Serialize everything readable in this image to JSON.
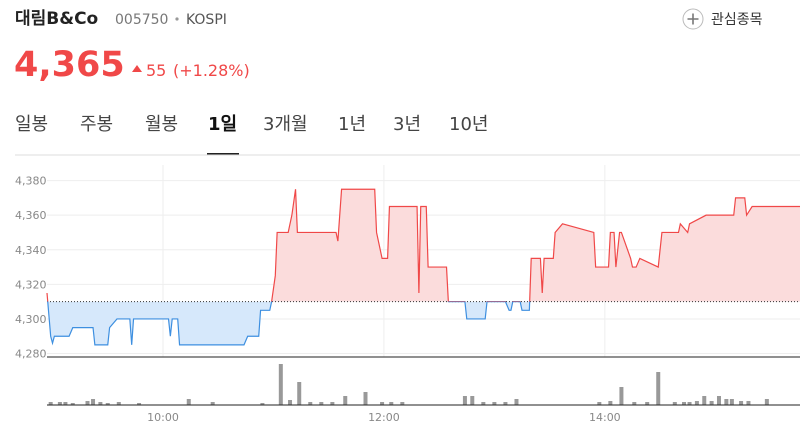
{
  "header": {
    "name": "대림B&Co",
    "code": "005750",
    "market": "KOSPI",
    "watch": "관심종목",
    "price": "4,365",
    "change": "55",
    "change_pct": "(+1.28%)"
  },
  "tabs": {
    "items": [
      "일봉",
      "주봉",
      "월봉",
      "1일",
      "3개월",
      "1년",
      "3년",
      "10년"
    ],
    "selected": 3
  },
  "chart_data": [
    {
      "type": "line",
      "x": [
        537,
        539,
        540,
        541,
        549,
        551,
        562,
        563,
        570,
        571,
        575,
        582,
        583,
        584,
        603,
        604,
        605,
        608,
        609,
        644,
        646,
        652,
        653,
        658,
        659,
        661,
        662,
        668,
        670,
        672,
        673,
        694,
        695,
        697,
        715,
        716,
        718,
        719,
        722,
        723,
        738,
        739,
        740,
        743,
        744,
        754,
        755,
        764,
        765,
        775,
        776,
        786,
        788,
        789,
        790,
        794,
        795,
        799,
        800,
        805,
        806,
        807,
        812,
        813,
        817,
        834,
        835,
        842,
        843,
        845,
        846,
        848,
        849,
        854,
        855,
        857,
        859,
        869,
        871,
        880,
        881,
        885,
        886,
        895,
        910,
        911,
        916,
        917,
        920,
        946
      ],
      "values": [
        4315,
        4290,
        4286,
        4290,
        4290,
        4295,
        4295,
        4285,
        4285,
        4295,
        4300,
        4300,
        4285,
        4300,
        4300,
        4290,
        4300,
        4300,
        4285,
        4285,
        4290,
        4290,
        4305,
        4305,
        4310,
        4325,
        4350,
        4350,
        4360,
        4375,
        4350,
        4350,
        4345,
        4375,
        4375,
        4350,
        4340,
        4335,
        4335,
        4365,
        4365,
        4315,
        4365,
        4365,
        4330,
        4330,
        4310,
        4310,
        4300,
        4300,
        4310,
        4310,
        4305,
        4305,
        4310,
        4310,
        4305,
        4305,
        4335,
        4335,
        4315,
        4335,
        4335,
        4350,
        4355,
        4350,
        4330,
        4330,
        4350,
        4350,
        4330,
        4350,
        4350,
        4335,
        4330,
        4330,
        4335,
        4330,
        4350,
        4350,
        4355,
        4350,
        4355,
        4360,
        4360,
        4370,
        4370,
        4360,
        4365,
        4365
      ],
      "base_value": 4310,
      "up_color": "#f04848",
      "down_color": "#3d8fe0",
      "xlim": [
        537,
        946
      ],
      "ylim": [
        4278,
        4389
      ],
      "xticks": [
        {
          "value": 600,
          "label": "10:00"
        },
        {
          "value": 720,
          "label": "12:00"
        },
        {
          "value": 840,
          "label": "14:00"
        }
      ],
      "yticks": [
        {
          "value": 4280,
          "label": "4,280"
        },
        {
          "value": 4300,
          "label": "4,300"
        },
        {
          "value": 4320,
          "label": "4,320"
        },
        {
          "value": 4340,
          "label": "4,340"
        },
        {
          "value": 4360,
          "label": "4,360"
        },
        {
          "value": 4380,
          "label": "4,380"
        }
      ],
      "grid": true
    },
    {
      "type": "bar",
      "x": [
        539,
        544,
        547,
        551,
        559,
        562,
        566,
        570,
        576,
        587,
        614,
        627,
        654,
        664,
        669,
        674,
        680,
        686,
        692,
        699,
        710,
        719,
        724,
        730,
        764,
        768,
        774,
        780,
        786,
        792,
        837,
        843,
        849,
        856,
        863,
        869,
        878,
        883,
        886,
        890,
        894,
        898,
        902,
        906,
        909,
        914,
        918,
        928
      ],
      "values": [
        3,
        3,
        3,
        2,
        4,
        6,
        3,
        2,
        3,
        2,
        6,
        3,
        2,
        41,
        5,
        23,
        3,
        3,
        3,
        9,
        13,
        3,
        3,
        3,
        9,
        9,
        3,
        3,
        3,
        6,
        3,
        4,
        18,
        3,
        3,
        33,
        3,
        3,
        3,
        4,
        9,
        4,
        9,
        6,
        6,
        4,
        4,
        6
      ],
      "color": "#999999",
      "xlim": [
        537,
        946
      ],
      "ylim": [
        0,
        45
      ]
    }
  ]
}
